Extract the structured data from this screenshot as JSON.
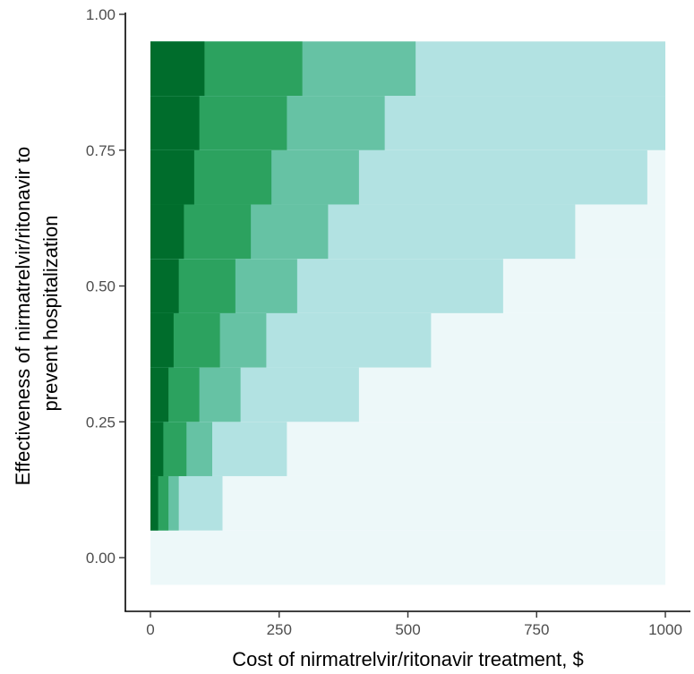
{
  "chart_data": {
    "type": "heatmap",
    "title": "",
    "xlabel": "Cost of nirmatrelvir/ritonavir treatment, $",
    "ylabel_lines": [
      "Effectiveness of nirmatrelvir/ritonavir to",
      "prevent hospitalization"
    ],
    "xlim": [
      0,
      1000
    ],
    "ylim": [
      0,
      1
    ],
    "x_ticks": [
      0,
      250,
      500,
      750,
      1000
    ],
    "x_tick_labels": [
      "0",
      "250",
      "500",
      "750",
      "1000"
    ],
    "y_ticks": [
      0,
      0.25,
      0.5,
      0.75,
      1.0
    ],
    "y_tick_labels": [
      "0.00",
      "0.25",
      "0.50",
      "0.75",
      "1.00"
    ],
    "grid": false,
    "legend": "none",
    "colors": [
      "#edf8f9",
      "#b2e2e2",
      "#66c2a4",
      "#2ca25f",
      "#006d2c"
    ],
    "row_height": 0.1,
    "rows": [
      {
        "y": 0.0,
        "thresholds": [
          0,
          0,
          0,
          0
        ]
      },
      {
        "y": 0.1,
        "thresholds": [
          140,
          55,
          35,
          15
        ]
      },
      {
        "y": 0.2,
        "thresholds": [
          265,
          120,
          70,
          25
        ]
      },
      {
        "y": 0.3,
        "thresholds": [
          405,
          175,
          95,
          35
        ]
      },
      {
        "y": 0.4,
        "thresholds": [
          545,
          225,
          135,
          45
        ]
      },
      {
        "y": 0.5,
        "thresholds": [
          685,
          285,
          165,
          55
        ]
      },
      {
        "y": 0.6,
        "thresholds": [
          825,
          345,
          195,
          65
        ]
      },
      {
        "y": 0.7,
        "thresholds": [
          965,
          405,
          235,
          85
        ]
      },
      {
        "y": 0.8,
        "thresholds": [
          1000,
          455,
          265,
          95
        ]
      },
      {
        "y": 0.9,
        "thresholds": [
          1000,
          515,
          295,
          105
        ]
      }
    ]
  }
}
